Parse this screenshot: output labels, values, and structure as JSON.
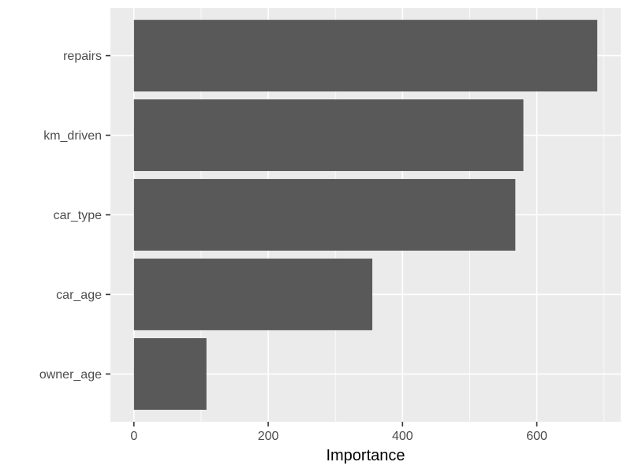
{
  "chart_data": {
    "type": "bar",
    "orientation": "horizontal",
    "title": "",
    "xlabel": "Importance",
    "ylabel": "",
    "categories": [
      "repairs",
      "km_driven",
      "car_type",
      "car_age",
      "owner_age"
    ],
    "values": [
      690,
      580,
      568,
      355,
      108
    ],
    "x_ticks": [
      0,
      200,
      400,
      600
    ],
    "xlim": [
      -35,
      725
    ],
    "grid": true,
    "legend": "none"
  },
  "colors": {
    "panel_background": "#ebebeb",
    "grid_major": "#ffffff",
    "bar_fill": "#595959",
    "tick_color": "#333333",
    "tick_text": "#4d4d4d"
  }
}
